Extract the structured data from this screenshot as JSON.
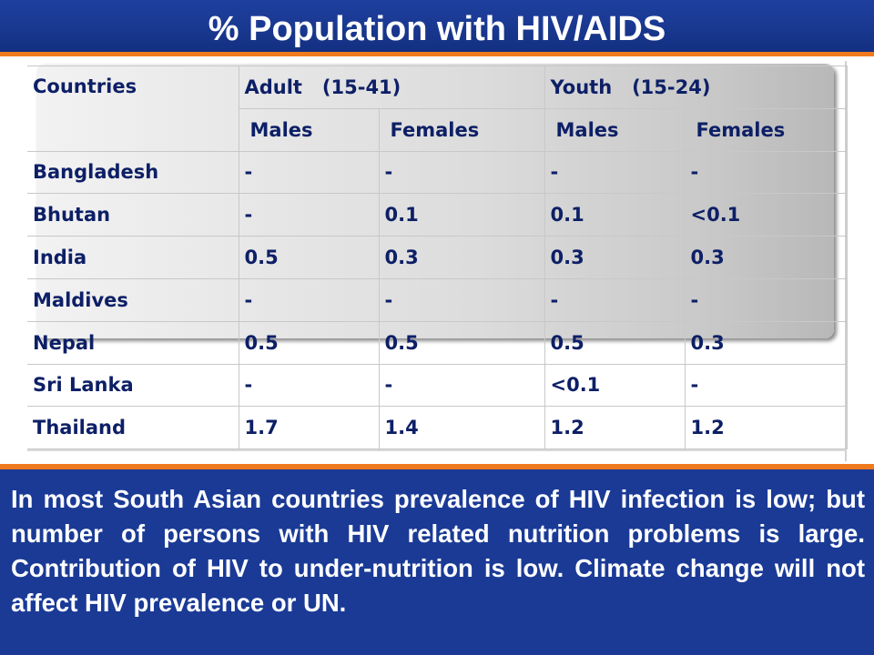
{
  "title": "% Population with HIV/AIDS",
  "table": {
    "header_row1": [
      "Countries",
      "Adult   (15-41)",
      "Youth   (15-24)"
    ],
    "header_row2": [
      "Males",
      "Females",
      "Males",
      "Females"
    ],
    "rows": [
      {
        "country": "Bangladesh",
        "values": [
          "-",
          "-",
          "-",
          "-"
        ]
      },
      {
        "country": "Bhutan",
        "values": [
          "-",
          "0.1",
          "0.1",
          "<0.1"
        ]
      },
      {
        "country": "India",
        "values": [
          "0.5",
          "0.3",
          "0.3",
          "0.3"
        ]
      },
      {
        "country": "Maldives",
        "values": [
          "-",
          "-",
          "-",
          "-"
        ]
      },
      {
        "country": "Nepal",
        "values": [
          "0.5",
          "0.5",
          "0.5",
          "0.3"
        ]
      },
      {
        "country": "Sri Lanka",
        "values": [
          "-",
          "-",
          "<0.1",
          "-"
        ]
      },
      {
        "country": "Thailand",
        "values": [
          "1.7",
          "1.4",
          "1.2",
          "1.2"
        ]
      }
    ]
  },
  "summary_text": "In most South Asian countries prevalence of HIV infection is low; but number of persons with HIV related nutrition problems is large. Contribution of HIV to under-nutrition is low. Climate change will not affect HIV prevalence  or UN.",
  "colors": {
    "title_bar": "#1b3a94",
    "accent_orange": "#f07b1e",
    "table_text": "#0d1f66",
    "panel_text": "#ffffff"
  }
}
